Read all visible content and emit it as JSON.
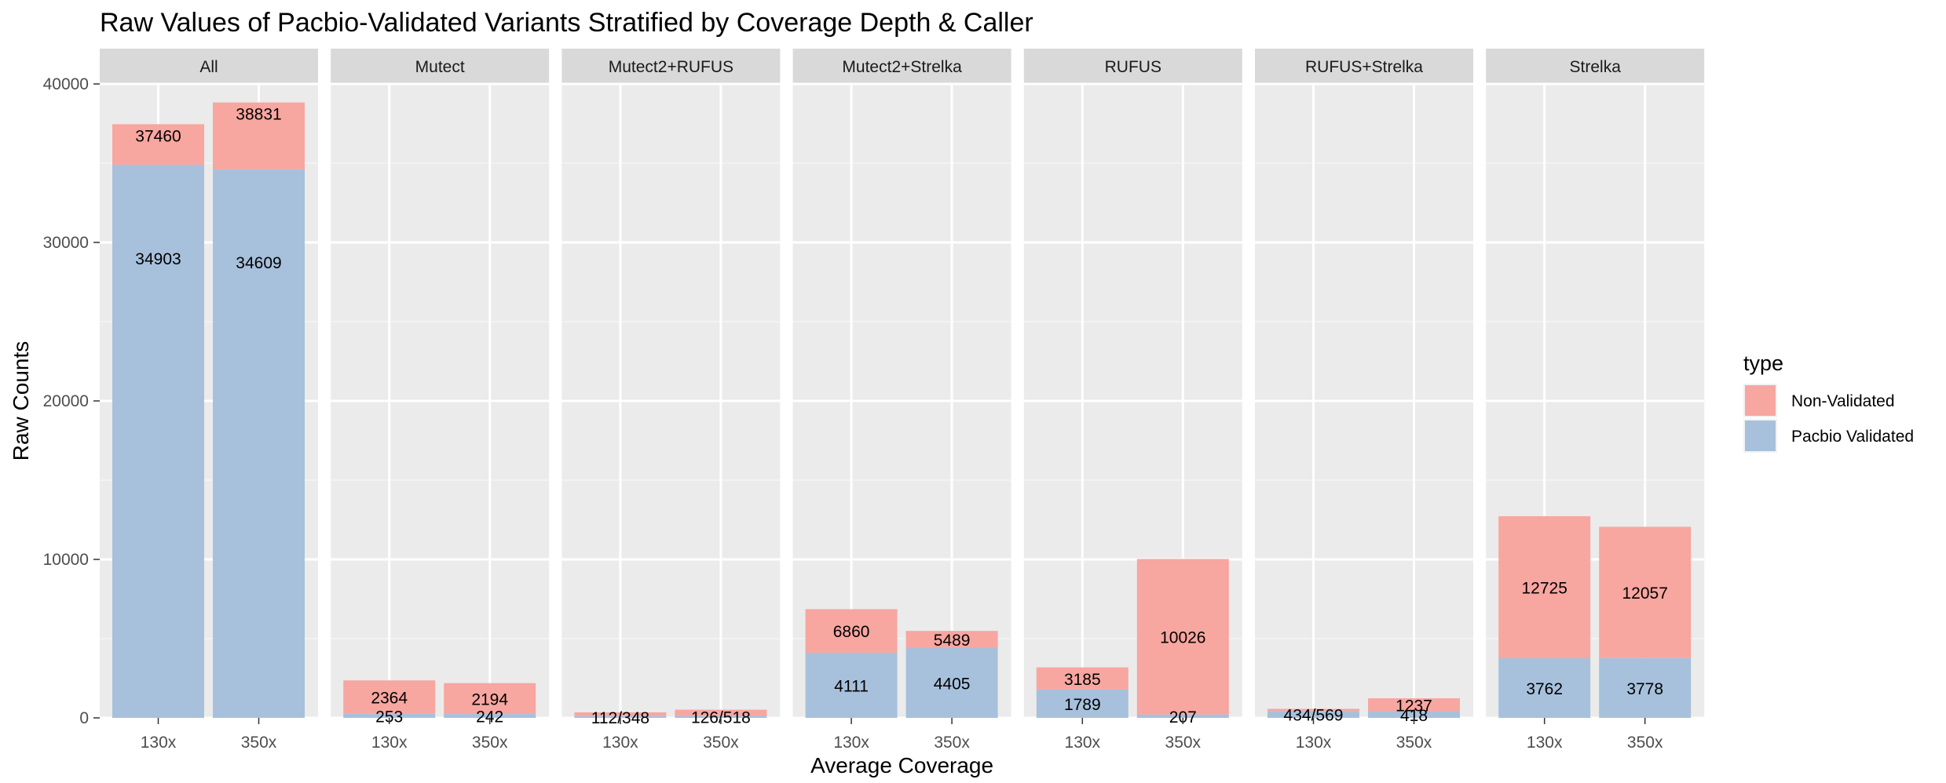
{
  "chart_data": {
    "type": "bar",
    "stacked": true,
    "faceted": true,
    "title": "Raw Values of Pacbio-Validated Variants Stratified by Coverage Depth & Caller",
    "xlabel": "Average Coverage",
    "ylabel": "Raw Counts",
    "ylim": [
      0,
      40000
    ],
    "yticks": [
      0,
      10000,
      20000,
      30000,
      40000
    ],
    "grid": true,
    "legend": {
      "title": "type",
      "position": "right",
      "entries": [
        {
          "label": "Non-Validated",
          "color": "#F8A6A0"
        },
        {
          "label": "Pacbio Validated",
          "color": "#A7C1DC"
        }
      ]
    },
    "categories": [
      "130x",
      "350x"
    ],
    "panels": [
      {
        "name": "All",
        "bars": [
          {
            "x": "130x",
            "validated": 34903,
            "non_validated": 2557,
            "validated_label": "34903",
            "non_validated_label": "37460"
          },
          {
            "x": "350x",
            "validated": 34609,
            "non_validated": 4222,
            "validated_label": "34609",
            "non_validated_label": "38831"
          }
        ]
      },
      {
        "name": "Mutect",
        "bars": [
          {
            "x": "130x",
            "validated": 253,
            "non_validated": 2111,
            "validated_label": "253",
            "non_validated_label": "2364"
          },
          {
            "x": "350x",
            "validated": 242,
            "non_validated": 1952,
            "validated_label": "242",
            "non_validated_label": "2194"
          }
        ]
      },
      {
        "name": "Mutect2+RUFUS",
        "bars": [
          {
            "x": "130x",
            "validated": 112,
            "non_validated": 236,
            "validated_label": "112/348",
            "non_validated_label": ""
          },
          {
            "x": "350x",
            "validated": 126,
            "non_validated": 392,
            "validated_label": "126/518",
            "non_validated_label": ""
          }
        ]
      },
      {
        "name": "Mutect2+Strelka",
        "bars": [
          {
            "x": "130x",
            "validated": 4111,
            "non_validated": 2749,
            "validated_label": "4111",
            "non_validated_label": "6860"
          },
          {
            "x": "350x",
            "validated": 4405,
            "non_validated": 1084,
            "validated_label": "4405",
            "non_validated_label": "5489"
          }
        ]
      },
      {
        "name": "RUFUS",
        "bars": [
          {
            "x": "130x",
            "validated": 1789,
            "non_validated": 1396,
            "validated_label": "1789",
            "non_validated_label": "3185"
          },
          {
            "x": "350x",
            "validated": 207,
            "non_validated": 9819,
            "validated_label": "207",
            "non_validated_label": "10026"
          }
        ]
      },
      {
        "name": "RUFUS+Strelka",
        "bars": [
          {
            "x": "130x",
            "validated": 434,
            "non_validated": 135,
            "validated_label": "434/569",
            "non_validated_label": ""
          },
          {
            "x": "350x",
            "validated": 418,
            "non_validated": 819,
            "validated_label": "418",
            "non_validated_label": "1237"
          }
        ]
      },
      {
        "name": "Strelka",
        "bars": [
          {
            "x": "130x",
            "validated": 3762,
            "non_validated": 8963,
            "validated_label": "3762",
            "non_validated_label": "12725"
          },
          {
            "x": "350x",
            "validated": 3778,
            "non_validated": 8279,
            "validated_label": "3778",
            "non_validated_label": "12057"
          }
        ]
      }
    ]
  }
}
